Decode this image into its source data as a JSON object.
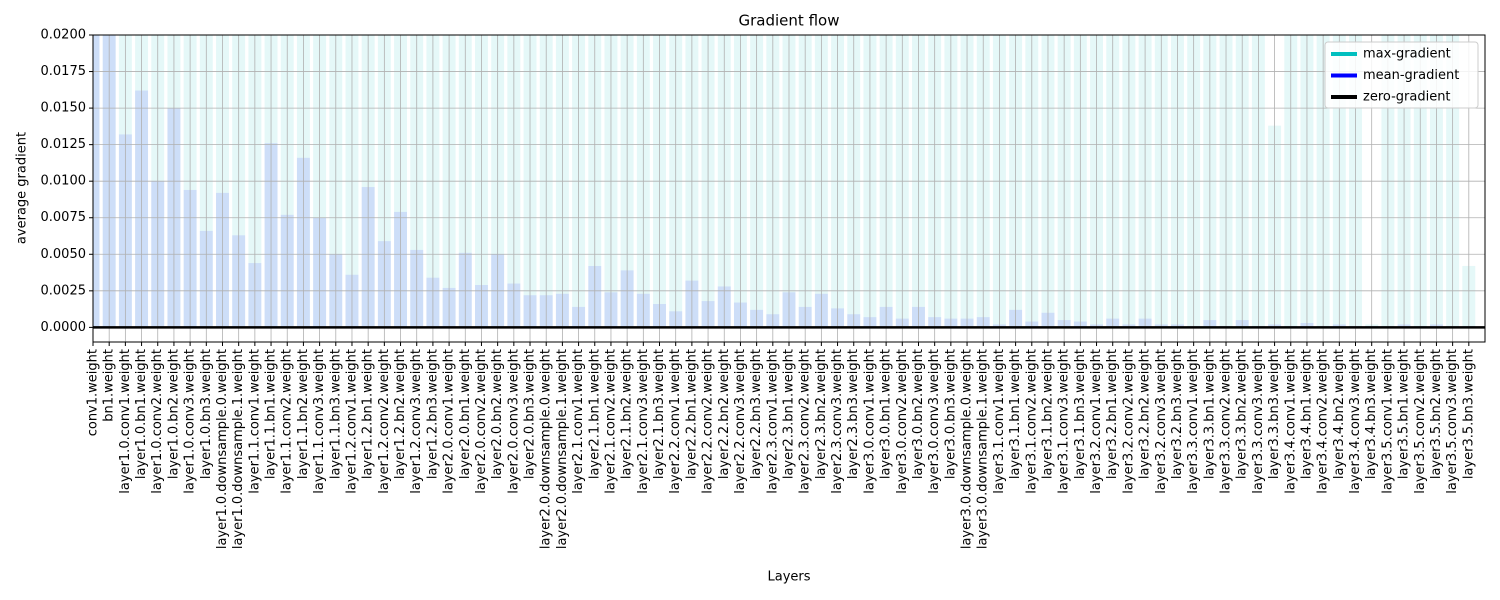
{
  "chart_data": {
    "type": "bar",
    "title": "Gradient flow",
    "xlabel": "Layers",
    "ylabel": "average gradient",
    "categories": [
      "conv1.weight",
      "bn1.weight",
      "layer1.0.conv1.weight",
      "layer1.0.bn1.weight",
      "layer1.0.conv2.weight",
      "layer1.0.bn2.weight",
      "layer1.0.conv3.weight",
      "layer1.0.bn3.weight",
      "layer1.0.downsample.0.weight",
      "layer1.0.downsample.1.weight",
      "layer1.1.conv1.weight",
      "layer1.1.bn1.weight",
      "layer1.1.conv2.weight",
      "layer1.1.bn2.weight",
      "layer1.1.conv3.weight",
      "layer1.1.bn3.weight",
      "layer1.2.conv1.weight",
      "layer1.2.bn1.weight",
      "layer1.2.conv2.weight",
      "layer1.2.bn2.weight",
      "layer1.2.conv3.weight",
      "layer1.2.bn3.weight",
      "layer2.0.conv1.weight",
      "layer2.0.bn1.weight",
      "layer2.0.conv2.weight",
      "layer2.0.bn2.weight",
      "layer2.0.conv3.weight",
      "layer2.0.bn3.weight",
      "layer2.0.downsample.0.weight",
      "layer2.0.downsample.1.weight",
      "layer2.1.conv1.weight",
      "layer2.1.bn1.weight",
      "layer2.1.conv2.weight",
      "layer2.1.bn2.weight",
      "layer2.1.conv3.weight",
      "layer2.1.bn3.weight",
      "layer2.2.conv1.weight",
      "layer2.2.bn1.weight",
      "layer2.2.conv2.weight",
      "layer2.2.bn2.weight",
      "layer2.2.conv3.weight",
      "layer2.2.bn3.weight",
      "layer2.3.conv1.weight",
      "layer2.3.bn1.weight",
      "layer2.3.conv2.weight",
      "layer2.3.bn2.weight",
      "layer2.3.conv3.weight",
      "layer2.3.bn3.weight",
      "layer3.0.conv1.weight",
      "layer3.0.bn1.weight",
      "layer3.0.conv2.weight",
      "layer3.0.bn2.weight",
      "layer3.0.conv3.weight",
      "layer3.0.bn3.weight",
      "layer3.0.downsample.0.weight",
      "layer3.0.downsample.1.weight",
      "layer3.1.conv1.weight",
      "layer3.1.bn1.weight",
      "layer3.1.conv2.weight",
      "layer3.1.bn2.weight",
      "layer3.1.conv3.weight",
      "layer3.1.bn3.weight",
      "layer3.2.conv1.weight",
      "layer3.2.bn1.weight",
      "layer3.2.conv2.weight",
      "layer3.2.bn2.weight",
      "layer3.2.conv3.weight",
      "layer3.2.bn3.weight",
      "layer3.3.conv1.weight",
      "layer3.3.bn1.weight",
      "layer3.3.conv2.weight",
      "layer3.3.bn2.weight",
      "layer3.3.conv3.weight",
      "layer3.3.bn3.weight",
      "layer3.4.conv1.weight",
      "layer3.4.bn1.weight",
      "layer3.4.conv2.weight",
      "layer3.4.bn2.weight",
      "layer3.4.conv3.weight",
      "layer3.4.bn3.weight",
      "layer3.5.conv1.weight",
      "layer3.5.bn1.weight",
      "layer3.5.conv2.weight",
      "layer3.5.bn2.weight",
      "layer3.5.conv3.weight",
      "layer3.5.bn3.weight"
    ],
    "series": [
      {
        "name": "max-gradient",
        "color": "#00bfbf",
        "values": [
          0.02,
          0.02,
          0.02,
          0.02,
          0.02,
          0.02,
          0.02,
          0.02,
          0.02,
          0.02,
          0.02,
          0.02,
          0.02,
          0.02,
          0.02,
          0.02,
          0.02,
          0.02,
          0.02,
          0.02,
          0.02,
          0.02,
          0.02,
          0.02,
          0.02,
          0.02,
          0.02,
          0.02,
          0.02,
          0.02,
          0.02,
          0.02,
          0.02,
          0.02,
          0.02,
          0.02,
          0.02,
          0.02,
          0.02,
          0.02,
          0.02,
          0.02,
          0.02,
          0.02,
          0.02,
          0.02,
          0.02,
          0.02,
          0.02,
          0.02,
          0.02,
          0.02,
          0.02,
          0.02,
          0.02,
          0.02,
          0.02,
          0.02,
          0.02,
          0.02,
          0.02,
          0.02,
          0.02,
          0.02,
          0.02,
          0.02,
          0.02,
          0.02,
          0.02,
          0.02,
          0.02,
          0.02,
          0.02,
          0.0138,
          0.02,
          0.02,
          0.02,
          0.02,
          0.02,
          0.0002,
          0.02,
          0.02,
          0.02,
          0.02,
          0.02,
          0.0042
        ]
      },
      {
        "name": "mean-gradient",
        "color": "#0000ff",
        "values": [
          0.02,
          0.02,
          0.0132,
          0.0162,
          0.01,
          0.015,
          0.0094,
          0.0066,
          0.0092,
          0.0063,
          0.0044,
          0.0126,
          0.0077,
          0.0116,
          0.0075,
          0.005,
          0.0036,
          0.0096,
          0.0059,
          0.0079,
          0.0053,
          0.0034,
          0.0027,
          0.0051,
          0.0029,
          0.005,
          0.003,
          0.0022,
          0.0022,
          0.0023,
          0.0014,
          0.0042,
          0.0024,
          0.0039,
          0.0023,
          0.0016,
          0.0011,
          0.0032,
          0.0018,
          0.0028,
          0.0017,
          0.0012,
          0.0009,
          0.0024,
          0.0014,
          0.0023,
          0.0013,
          0.0009,
          0.0007,
          0.0014,
          0.0006,
          0.0014,
          0.0007,
          0.0006,
          0.0006,
          0.0007,
          0.0002,
          0.0012,
          0.0004,
          0.001,
          0.0005,
          0.0004,
          0.0002,
          0.0006,
          0.0002,
          0.0006,
          0.0002,
          0.0002,
          0.0001,
          0.0005,
          0.0001,
          0.0005,
          0.0001,
          0.0002,
          0.0001,
          0.0003,
          0.0001,
          0.0002,
          0.0001,
          0.0001,
          0.0001,
          0.0002,
          0.0001,
          0.0002,
          0.0001,
          0.0001
        ]
      }
    ],
    "zero_line": {
      "name": "zero-gradient",
      "color": "#000000",
      "value": 0
    },
    "ylim": [
      -0.001,
      0.02
    ],
    "yticks": [
      {
        "value": 0,
        "label": "0.0000"
      },
      {
        "value": 0.0025,
        "label": "0.0025"
      },
      {
        "value": 0.005,
        "label": "0.0050"
      },
      {
        "value": 0.0075,
        "label": "0.0075"
      },
      {
        "value": 0.01,
        "label": "0.0100"
      },
      {
        "value": 0.0125,
        "label": "0.0125"
      },
      {
        "value": 0.015,
        "label": "0.0150"
      },
      {
        "value": 0.0175,
        "label": "0.0175"
      },
      {
        "value": 0.02,
        "label": "0.0200"
      }
    ],
    "grid": true,
    "legend": "upper right"
  }
}
